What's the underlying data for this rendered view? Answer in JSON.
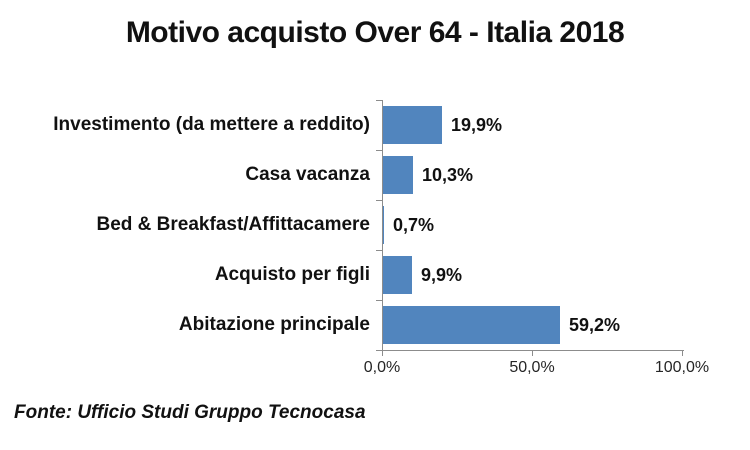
{
  "title": "Motivo acquisto Over 64 - Italia 2018",
  "colors": {
    "bar": "#5185BE",
    "axis": "#8c8c8c",
    "text": "#111111",
    "tick_label": "#262626"
  },
  "footer": {
    "source": "Fonte: Ufficio Studi Gruppo Tecnocasa"
  },
  "chart_data": {
    "type": "bar",
    "orientation": "horizontal",
    "title": "Motivo acquisto Over 64 - Italia 2018",
    "categories": [
      "Investimento (da mettere a reddito)",
      "Casa vacanza",
      "Bed & Breakfast/Affittacamere",
      "Acquisto per figli",
      "Abitazione principale"
    ],
    "values": [
      19.9,
      10.3,
      0.7,
      9.9,
      59.2
    ],
    "value_labels": [
      "19,9%",
      "10,3%",
      "0,7%",
      "9,9%",
      "59,2%"
    ],
    "xlabel": "",
    "ylabel": "",
    "xlim": [
      0,
      100
    ],
    "x_ticks": [
      {
        "value": 0,
        "label": "0,0%"
      },
      {
        "value": 50,
        "label": "50,0%"
      },
      {
        "value": 100,
        "label": "100,0%"
      }
    ],
    "grid": false,
    "legend": false,
    "bar_color": "#5185BE",
    "source": "Fonte: Ufficio Studi Gruppo Tecnocasa"
  }
}
